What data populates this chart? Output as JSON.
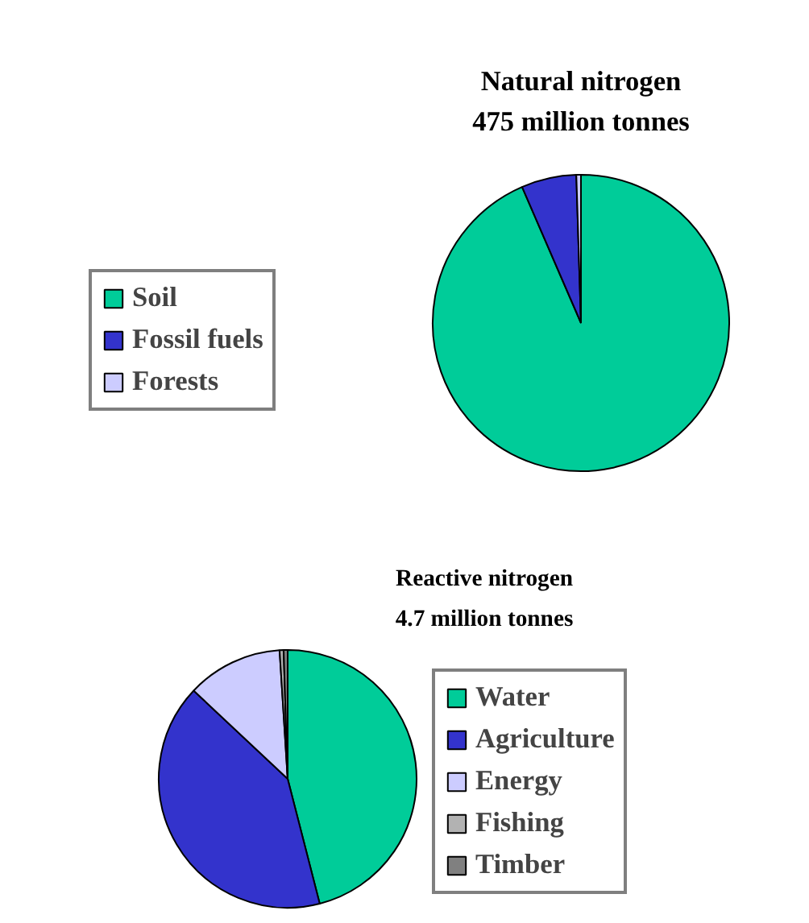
{
  "chart_data": [
    {
      "type": "pie",
      "title": "Natural nitrogen",
      "subtitle": "475 million tonnes",
      "categories": [
        "Soil",
        "Fossil fuels",
        "Forests"
      ],
      "values": [
        93.5,
        6,
        0.5
      ],
      "colors": [
        "#00cc99",
        "#3333cc",
        "#ccccff"
      ],
      "legend": "left"
    },
    {
      "type": "pie",
      "title": "Reactive nitrogen",
      "subtitle": "4.7 million tonnes",
      "categories": [
        "Water",
        "Agriculture",
        "Energy",
        "Fishing",
        "Timber"
      ],
      "values": [
        46,
        41,
        12,
        0.5,
        0.5
      ],
      "colors": [
        "#00cc99",
        "#3333cc",
        "#ccccff",
        "#b2b2b2",
        "#808080"
      ],
      "legend": "right"
    }
  ]
}
